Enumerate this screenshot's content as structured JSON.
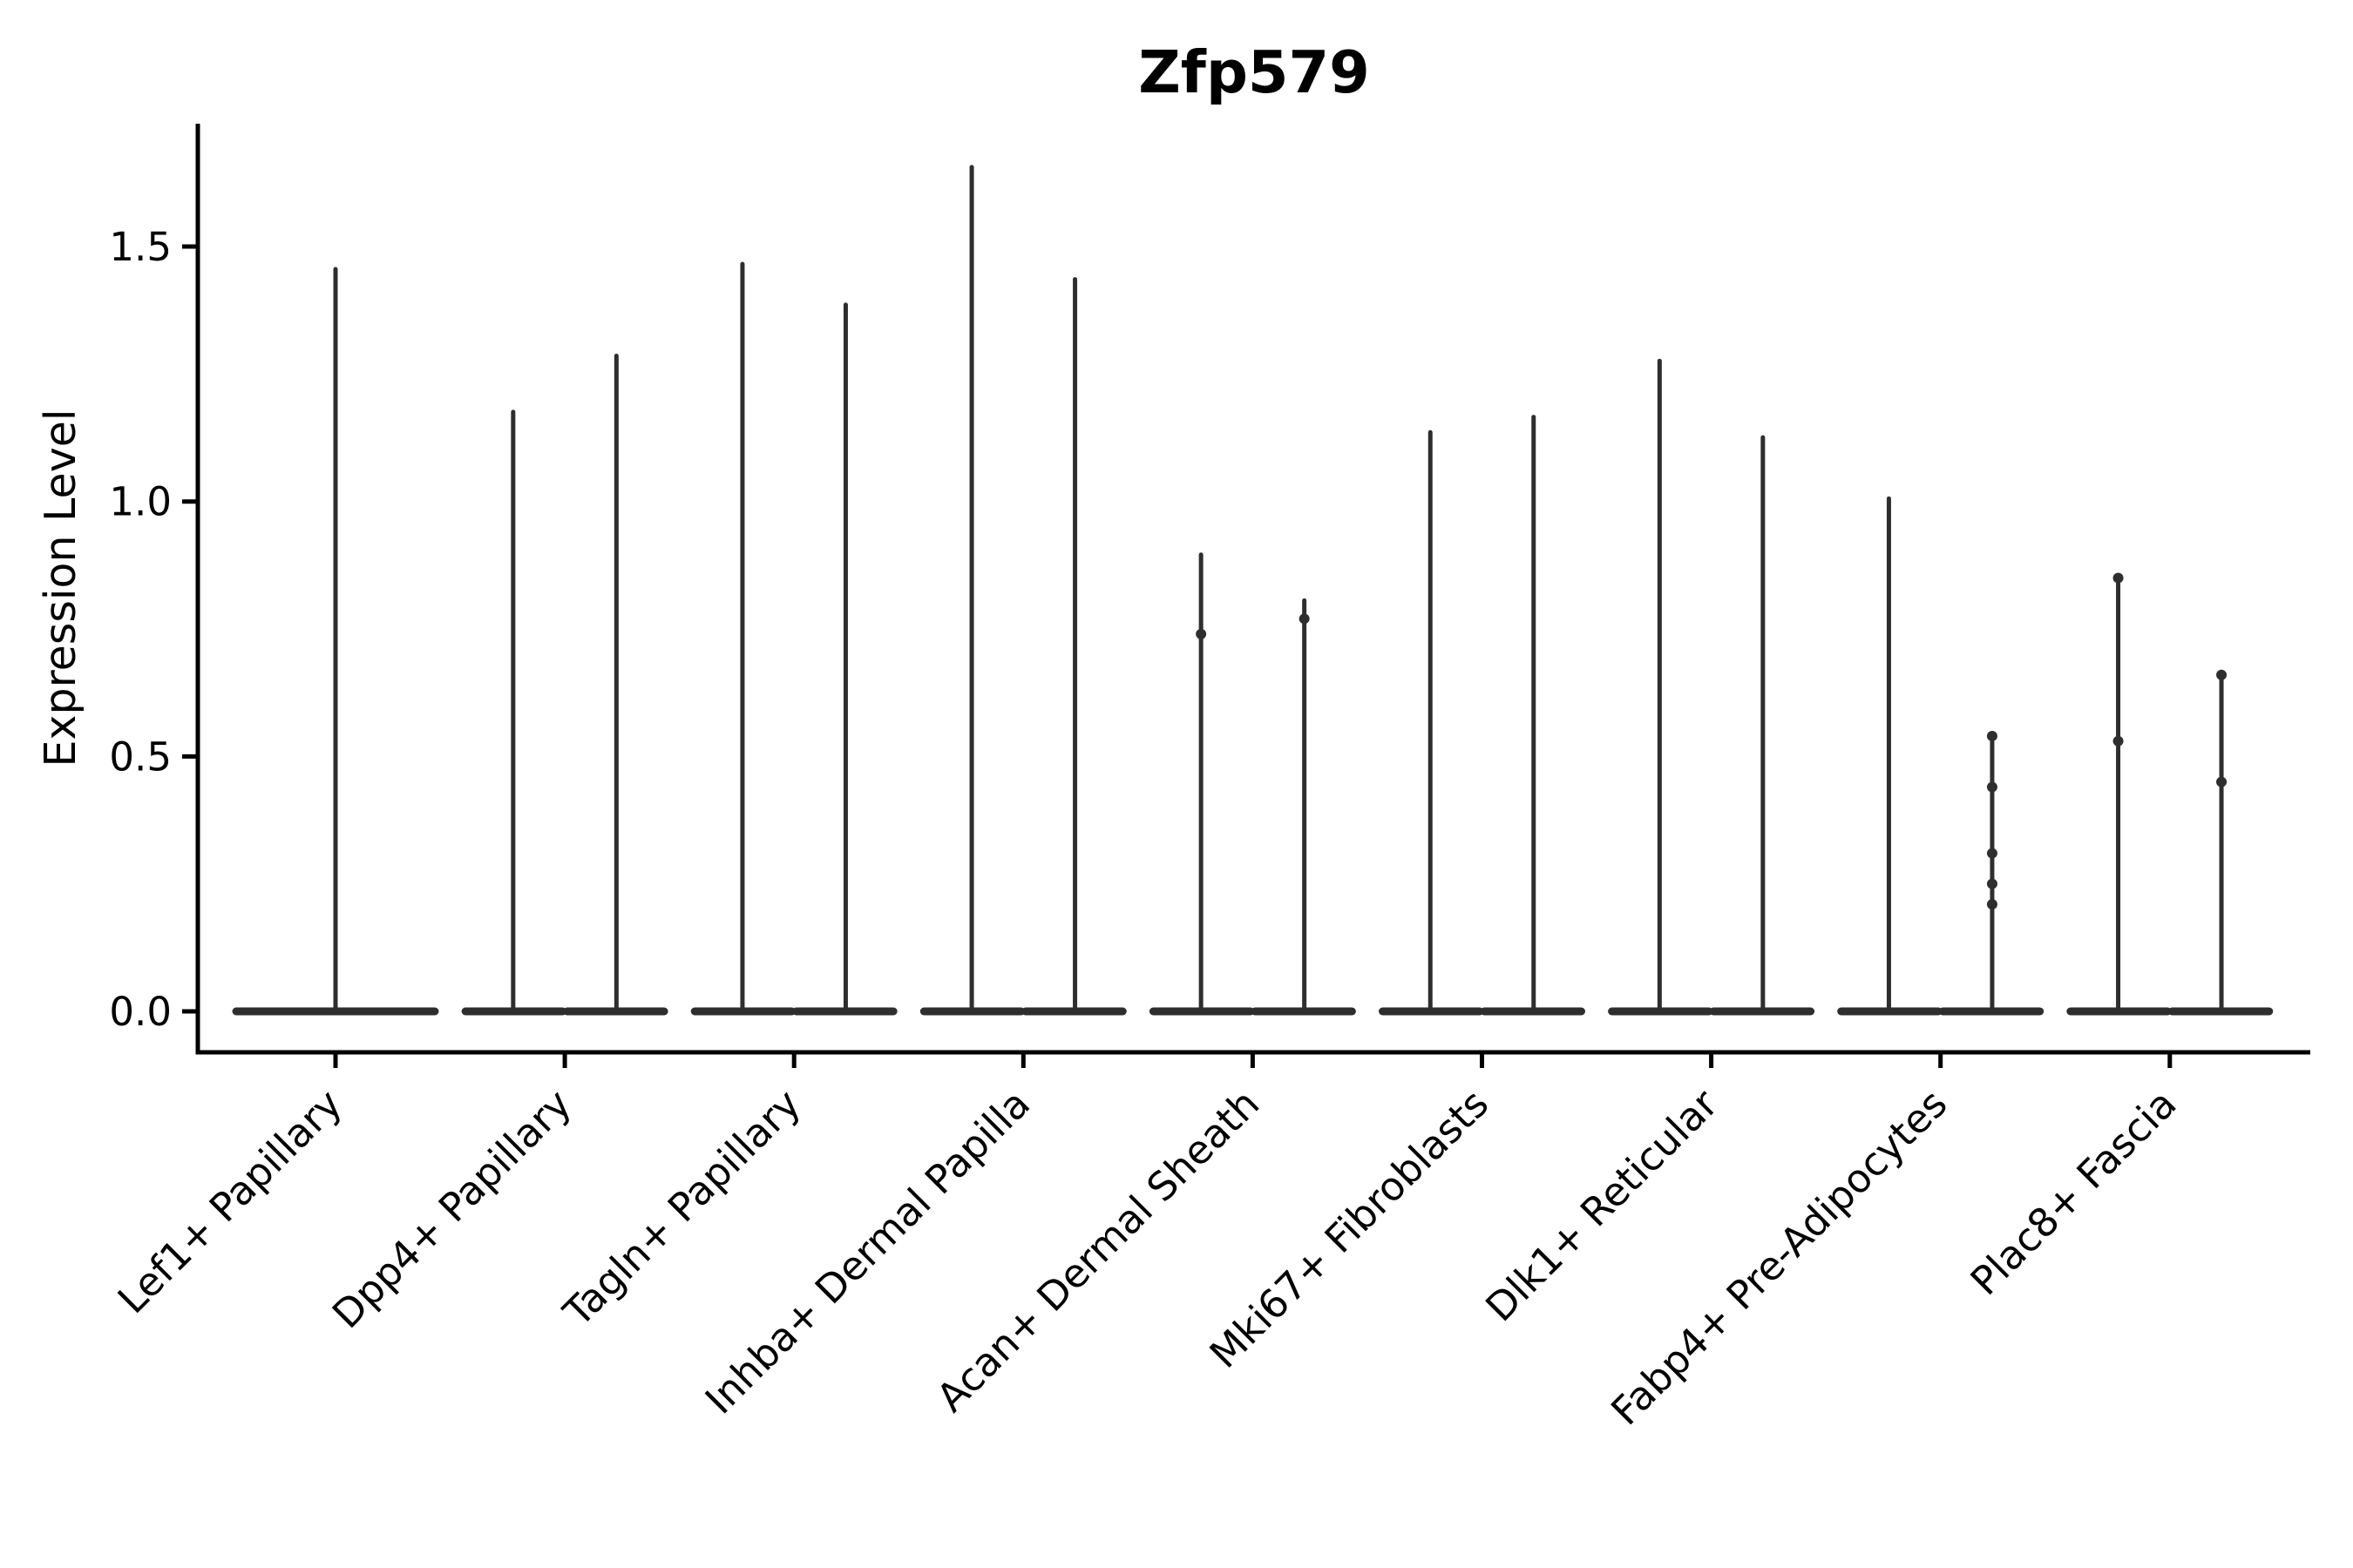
{
  "chart_data": {
    "type": "violin",
    "title": "Zfp579",
    "xlabel": "",
    "ylabel": "Expression Level",
    "ylim": [
      -0.08,
      1.74
    ],
    "yticks": [
      0.0,
      0.5,
      1.0,
      1.5
    ],
    "ytick_labels": [
      "0.0",
      "0.5",
      "1.0",
      "1.5"
    ],
    "grid": false,
    "legend": null,
    "violin_color": "#2e2e2e",
    "axis_color": "#000000",
    "categories": [
      "Lef1+ Papillary",
      "Dpp4+ Papillary",
      "Tagln+ Papillary",
      "Inhba+ Dermal Papilla",
      "Acan+ Dermal Sheath",
      "Mki67+ Fibroblasts",
      "Dlk1+ Reticular",
      "Fabp4+ Pre-Adipocytes",
      "Plac8+ Fascia"
    ],
    "groups": [
      {
        "label": "Lef1+ Papillary",
        "violins": [
          {
            "slot": "center",
            "max": 1.46,
            "points": []
          }
        ]
      },
      {
        "label": "Dpp4+ Papillary",
        "violins": [
          {
            "slot": "left",
            "max": 1.18,
            "points": []
          },
          {
            "slot": "right",
            "max": 1.29,
            "points": []
          }
        ]
      },
      {
        "label": "Tagln+ Papillary",
        "violins": [
          {
            "slot": "left",
            "max": 1.47,
            "points": []
          },
          {
            "slot": "right",
            "max": 1.39,
            "points": []
          }
        ]
      },
      {
        "label": "Inhba+ Dermal Papilla",
        "violins": [
          {
            "slot": "left",
            "max": 1.66,
            "points": []
          },
          {
            "slot": "right",
            "max": 1.44,
            "points": []
          }
        ]
      },
      {
        "label": "Acan+ Dermal Sheath",
        "violins": [
          {
            "slot": "left",
            "max": 0.9,
            "points": [
              0.74
            ]
          },
          {
            "slot": "right",
            "max": 0.81,
            "points": [
              0.77
            ]
          }
        ]
      },
      {
        "label": "Mki67+ Fibroblasts",
        "violins": [
          {
            "slot": "left",
            "max": 1.14,
            "points": []
          },
          {
            "slot": "right",
            "max": 1.17,
            "points": []
          }
        ]
      },
      {
        "label": "Dlk1+ Reticular",
        "violins": [
          {
            "slot": "left",
            "max": 1.28,
            "points": []
          },
          {
            "slot": "right",
            "max": 1.13,
            "points": []
          }
        ]
      },
      {
        "label": "Fabp4+ Pre-Adipocytes",
        "violins": [
          {
            "slot": "left",
            "max": 1.01,
            "points": []
          },
          {
            "slot": "right",
            "max": 0.55,
            "points": [
              0.54,
              0.44,
              0.31,
              0.25,
              0.21
            ]
          }
        ]
      },
      {
        "label": "Plac8+ Fascia",
        "violins": [
          {
            "slot": "left",
            "max": 0.85,
            "points": [
              0.85,
              0.53
            ]
          },
          {
            "slot": "right",
            "max": 0.66,
            "points": [
              0.66,
              0.45
            ]
          }
        ]
      }
    ]
  }
}
